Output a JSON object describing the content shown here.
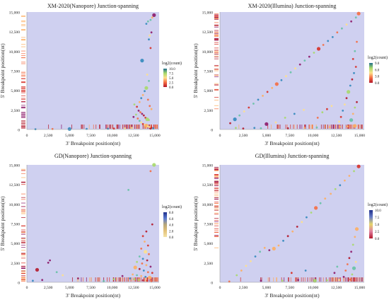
{
  "chart_data": [
    {
      "type": "scatter",
      "title": "XM-2020(Nanopore) Junction-spanning",
      "xlabel": "3' Breakpoint position(nt)",
      "ylabel": "5' Breakpoint position(nt)",
      "xticks": [
        "0",
        "2,500",
        "5,000",
        "7,500",
        "10,000",
        "12,500",
        "15,000"
      ],
      "yticks": [
        "0",
        "2,500",
        "5,000",
        "7,500",
        "10,000",
        "12,500",
        "15,000"
      ],
      "xlim": [
        0,
        15500
      ],
      "ylim": [
        0,
        15000
      ],
      "legend_title": "log2(count)",
      "legend_ticks": [
        "10.0",
        "7.5",
        "5.0",
        "2.5",
        "0.0"
      ],
      "legend_colors": [
        "#1f6e8c",
        "#a6d96a",
        "#fee08b",
        "#f46d43",
        "#b2182b"
      ],
      "grid": false,
      "series": [
        {
          "values": [
            [
              14900,
              14600
            ],
            [
              14700,
              14300
            ],
            [
              14500,
              14000
            ],
            [
              14200,
              13800
            ],
            [
              14000,
              13500
            ],
            [
              14600,
              12400
            ],
            [
              14400,
              12000
            ],
            [
              14300,
              11500
            ],
            [
              14500,
              10400
            ],
            [
              13500,
              8800
            ],
            [
              14100,
              7000
            ],
            [
              14300,
              6200
            ],
            [
              12600,
              3200
            ],
            [
              12900,
              2900
            ],
            [
              13200,
              3500
            ],
            [
              13400,
              4000
            ],
            [
              13600,
              4400
            ],
            [
              13800,
              4900
            ],
            [
              14000,
              5300
            ],
            [
              14200,
              3800
            ],
            [
              14400,
              3000
            ],
            [
              14600,
              2600
            ],
            [
              13100,
              2400
            ],
            [
              13300,
              2200
            ],
            [
              13500,
              2000
            ],
            [
              13700,
              1800
            ],
            [
              13900,
              1500
            ],
            [
              14100,
              1300
            ],
            [
              14300,
              1200
            ],
            [
              12800,
              1900
            ],
            [
              12500,
              1600
            ],
            [
              13000,
              1400
            ],
            [
              13200,
              1100
            ],
            [
              13400,
              900
            ],
            [
              13600,
              700
            ],
            [
              13800,
              600
            ],
            [
              14000,
              500
            ],
            [
              14200,
              400
            ],
            [
              14400,
              300
            ],
            [
              14600,
              250
            ],
            [
              12300,
              200
            ],
            [
              11500,
              150
            ],
            [
              10200,
              120
            ],
            [
              9500,
              100
            ],
            [
              7000,
              80
            ],
            [
              5000,
              60
            ],
            [
              3000,
              60
            ],
            [
              1000,
              40
            ],
            [
              14500,
              100
            ],
            [
              14800,
              150
            ]
          ]
        }
      ]
    },
    {
      "type": "scatter",
      "title": "XM-2020(Illumina) Junction-spanning",
      "xlabel": "3' Breakpoint position(nt)",
      "ylabel": "5' Breakpoint position(nt)",
      "xticks": [
        "0",
        "2,500",
        "5,000",
        "7,500",
        "10,000",
        "12,500",
        "15,000"
      ],
      "yticks": [
        "0",
        "2,500",
        "5,000",
        "7,500",
        "10,000",
        "12,500",
        "15,000"
      ],
      "xlim": [
        0,
        15500
      ],
      "ylim": [
        0,
        15000
      ],
      "legend_title": "log2(count)",
      "legend_ticks": [
        "9.0",
        "6.0",
        "3.0",
        "0.0"
      ],
      "legend_colors": [
        "#1f6e8c",
        "#a6d96a",
        "#fee08b",
        "#f46d43",
        "#b2182b"
      ],
      "grid": false,
      "series": [
        {
          "values": [
            [
              14900,
              14800
            ],
            [
              14600,
              14300
            ],
            [
              14100,
              13800
            ],
            [
              13600,
              13400
            ],
            [
              13100,
              12900
            ],
            [
              12600,
              12400
            ],
            [
              12100,
              11800
            ],
            [
              11600,
              11300
            ],
            [
              11100,
              10800
            ],
            [
              10600,
              10300
            ],
            [
              10100,
              9800
            ],
            [
              9600,
              9300
            ],
            [
              9100,
              8800
            ],
            [
              8600,
              8300
            ],
            [
              8100,
              7800
            ],
            [
              7600,
              7300
            ],
            [
              7100,
              6800
            ],
            [
              6600,
              6300
            ],
            [
              6100,
              5800
            ],
            [
              5600,
              5300
            ],
            [
              5100,
              4800
            ],
            [
              4600,
              4300
            ],
            [
              4100,
              3800
            ],
            [
              3600,
              3300
            ],
            [
              3100,
              2800
            ],
            [
              2600,
              2300
            ],
            [
              2100,
              1800
            ],
            [
              1600,
              1300
            ],
            [
              1100,
              800
            ],
            [
              14700,
              11200
            ],
            [
              14500,
              10000
            ],
            [
              14300,
              9000
            ],
            [
              14600,
              8000
            ],
            [
              14400,
              7200
            ],
            [
              14200,
              6400
            ],
            [
              14000,
              5600
            ],
            [
              13800,
              4800
            ],
            [
              13600,
              4000
            ],
            [
              13400,
              3200
            ],
            [
              13200,
              2400
            ],
            [
              13000,
              1600
            ],
            [
              12800,
              1000
            ],
            [
              14700,
              3500
            ],
            [
              14500,
              2800
            ],
            [
              14300,
              2000
            ],
            [
              14100,
              1200
            ],
            [
              12000,
              3000
            ],
            [
              11500,
              2600
            ],
            [
              11000,
              2200
            ],
            [
              10500,
              1500
            ],
            [
              9000,
              2500
            ],
            [
              8000,
              2000
            ],
            [
              7000,
              1500
            ],
            [
              6000,
              900
            ],
            [
              5000,
              700
            ],
            [
              1700,
              200
            ],
            [
              4400,
              150
            ],
            [
              7300,
              150
            ],
            [
              9100,
              200
            ],
            [
              10400,
              250
            ],
            [
              11800,
              300
            ],
            [
              12900,
              350
            ],
            [
              13700,
              400
            ],
            [
              14500,
              450
            ],
            [
              2500,
              120
            ],
            [
              3700,
              200
            ]
          ]
        }
      ]
    },
    {
      "type": "scatter",
      "title": "GD(Nanopore) Junction-spanning",
      "xlabel": "3' Breakpoint position(nt)",
      "ylabel": "5' Breakpoint position(nt)",
      "xticks": [
        "0",
        "2,500",
        "5,000",
        "7,500",
        "10,000",
        "12,500",
        "15,000"
      ],
      "yticks": [
        "0",
        "2,500",
        "5,000",
        "7,500",
        "10,000",
        "12,500",
        "15,000"
      ],
      "xlim": [
        0,
        15500
      ],
      "ylim": [
        0,
        15000
      ],
      "legend_title": "log2(count)",
      "legend_ticks": [
        "8.0",
        "6.0",
        "4.0",
        "2.0",
        "0.0"
      ],
      "legend_colors": [
        "#1f2f8c",
        "#5b7bd1",
        "#b8a77a",
        "#e3c27a",
        "#f4e3a8"
      ],
      "grid": false,
      "series": [
        {
          "values": [
            [
              14900,
              15000
            ],
            [
              14500,
              14200
            ],
            [
              11900,
              11800
            ],
            [
              14700,
              7400
            ],
            [
              14000,
              6500
            ],
            [
              13600,
              5900
            ],
            [
              13800,
              5200
            ],
            [
              14200,
              4700
            ],
            [
              13400,
              4300
            ],
            [
              13900,
              3900
            ],
            [
              14300,
              3600
            ],
            [
              13200,
              3300
            ],
            [
              13600,
              3000
            ],
            [
              14100,
              2800
            ],
            [
              12900,
              2600
            ],
            [
              13500,
              2400
            ],
            [
              14000,
              2200
            ],
            [
              14500,
              2000
            ],
            [
              12700,
              1900
            ],
            [
              13200,
              1700
            ],
            [
              13700,
              1500
            ],
            [
              14200,
              1300
            ],
            [
              14700,
              1200
            ],
            [
              12400,
              1000
            ],
            [
              12900,
              900
            ],
            [
              13400,
              800
            ],
            [
              13900,
              700
            ],
            [
              14400,
              600
            ],
            [
              12100,
              500
            ],
            [
              12600,
              400
            ],
            [
              13100,
              300
            ],
            [
              13600,
              250
            ],
            [
              14100,
              200
            ],
            [
              14600,
              150
            ],
            [
              2700,
              2800
            ],
            [
              2500,
              2500
            ],
            [
              1200,
              1600
            ],
            [
              3500,
              1300
            ],
            [
              4200,
              900
            ],
            [
              6000,
              500
            ],
            [
              10200,
              400
            ],
            [
              11200,
              800
            ],
            [
              1800,
              300
            ],
            [
              700,
              200
            ],
            [
              9000,
              150
            ]
          ]
        }
      ]
    },
    {
      "type": "scatter",
      "title": "GD(Illumina) Junction-spanning",
      "xlabel": "3' Breakpoint position(nt)",
      "ylabel": "5' Breakpoint position(nt)",
      "xticks": [
        "0",
        "2,500",
        "5,000",
        "7,500",
        "10,000",
        "12,500",
        "15,000"
      ],
      "yticks": [
        "0",
        "2,500",
        "5,000",
        "7,500",
        "10,000",
        "12,500",
        "15,000"
      ],
      "xlim": [
        0,
        15500
      ],
      "ylim": [
        0,
        15000
      ],
      "legend_title": "log2(count)",
      "legend_ticks": [
        "10.0",
        "7.5",
        "5.0",
        "2.5",
        "0.0"
      ],
      "legend_colors": [
        "#1f2f8c",
        "#6a7fc8",
        "#e6d56a",
        "#e07fa0",
        "#b2182b"
      ],
      "grid": false,
      "series": [
        {
          "values": [
            [
              14900,
              14800
            ],
            [
              14400,
              14200
            ],
            [
              13900,
              13600
            ],
            [
              13400,
              13000
            ],
            [
              12900,
              12400
            ],
            [
              12400,
              11900
            ],
            [
              11900,
              11300
            ],
            [
              11300,
              10700
            ],
            [
              10800,
              10100
            ],
            [
              10300,
              9500
            ],
            [
              9800,
              8900
            ],
            [
              9300,
              8300
            ],
            [
              8800,
              7700
            ],
            [
              8300,
              7100
            ],
            [
              7800,
              6500
            ],
            [
              7300,
              5900
            ],
            [
              6800,
              5300
            ],
            [
              6300,
              4700
            ],
            [
              5800,
              4300
            ],
            [
              5300,
              4100
            ],
            [
              4800,
              4400
            ],
            [
              4300,
              3900
            ],
            [
              3800,
              3300
            ],
            [
              3300,
              2700
            ],
            [
              2800,
              2100
            ],
            [
              2300,
              1500
            ],
            [
              1800,
              900
            ],
            [
              14700,
              6800
            ],
            [
              14500,
              5800
            ],
            [
              14300,
              4800
            ],
            [
              14100,
              3900
            ],
            [
              13900,
              3100
            ],
            [
              13700,
              2300
            ],
            [
              13500,
              1500
            ],
            [
              13300,
              700
            ],
            [
              14600,
              2600
            ],
            [
              14400,
              1800
            ],
            [
              14200,
              1000
            ],
            [
              12600,
              2000
            ],
            [
              12300,
              1200
            ],
            [
              9200,
              1500
            ],
            [
              7700,
              1200
            ],
            [
              4400,
              200
            ],
            [
              6700,
              200
            ],
            [
              8400,
              300
            ],
            [
              10200,
              200
            ],
            [
              11500,
              250
            ],
            [
              12800,
              300
            ],
            [
              14000,
              350
            ],
            [
              1000,
              100
            ]
          ]
        }
      ]
    }
  ]
}
